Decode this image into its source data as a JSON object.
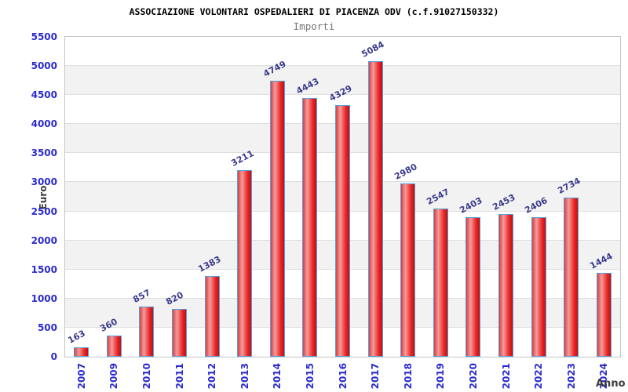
{
  "chart_data": {
    "type": "bar",
    "title": "ASSOCIAZIONE VOLONTARI OSPEDALIERI DI PIACENZA ODV (c.f.91027150332)",
    "subtitle": "Importi",
    "xlabel": "Anno",
    "ylabel": "Euro",
    "categories": [
      "2007",
      "2009",
      "2010",
      "2011",
      "2012",
      "2013",
      "2014",
      "2015",
      "2016",
      "2017",
      "2018",
      "2019",
      "2020",
      "2021",
      "2022",
      "2023",
      "2024"
    ],
    "values": [
      163,
      360,
      857,
      820,
      1383,
      3211,
      4749,
      4443,
      4329,
      5084,
      2980,
      2547,
      2403,
      2453,
      2406,
      2734,
      1444
    ],
    "ylim": [
      0,
      5500
    ],
    "ytick_step": 500,
    "yticks": [
      0,
      500,
      1000,
      1500,
      2000,
      2500,
      3000,
      3500,
      4000,
      4500,
      5000,
      5500
    ],
    "grid": "horizontal-bands",
    "legend": "none",
    "bar_label_rotation_deg": -28,
    "x_label_rotation_deg": -90,
    "colors": {
      "tick_label": "#2b2bd0",
      "value_label": "#3a3a8c",
      "axis_title": "#3c3c3c",
      "subtitle": "#787878",
      "title": "#000000",
      "band": "#f2f2f2",
      "gridline": "#dedede",
      "plot_border": "#c6c6c6",
      "bar_border": "#55a0e0",
      "bar_dark": "#d84040",
      "bar_light": "#f49c9c",
      "bar_mid": "#ea2424",
      "bar_edge": "#bb1212"
    }
  }
}
